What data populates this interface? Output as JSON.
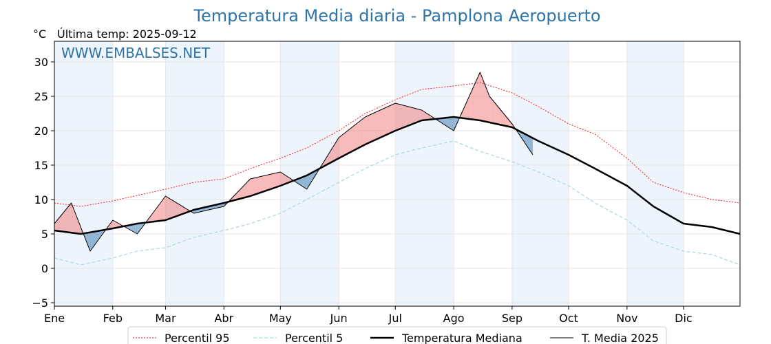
{
  "chart_data": {
    "type": "line",
    "title": "Temperatura Media diaria - Pamplona Aeropuerto",
    "unit_label": "°C",
    "last_temp_label": "Última temp: 2025-09-12",
    "watermark": "WWW.EMBALSES.NET",
    "ylim": [
      -5.5,
      33
    ],
    "yticks": [
      -5,
      0,
      5,
      10,
      15,
      20,
      25,
      30
    ],
    "months": [
      "Ene",
      "Feb",
      "Mar",
      "Abr",
      "May",
      "Jun",
      "Jul",
      "Ago",
      "Sep",
      "Oct",
      "Nov",
      "Dic"
    ],
    "month_start_days": [
      1,
      32,
      60,
      91,
      121,
      152,
      182,
      213,
      244,
      274,
      305,
      335
    ],
    "x_max_day": 365,
    "grid": true,
    "legend_position": "bottom",
    "colors": {
      "p95": "#ff0000",
      "p5": "#add8e6",
      "median": "#000000",
      "current": "#000000",
      "above_fill": "#f08080",
      "below_fill": "#4682b4",
      "month_shade": "#eef4fb"
    },
    "series": [
      {
        "name": "Percentil 95",
        "x": [
          1,
          15,
          32,
          45,
          60,
          75,
          91,
          105,
          121,
          135,
          152,
          166,
          182,
          196,
          213,
          227,
          244,
          258,
          274,
          288,
          305,
          319,
          335,
          350,
          365
        ],
        "values": [
          9.5,
          9.0,
          9.8,
          10.6,
          11.5,
          12.5,
          13.0,
          14.5,
          16.0,
          17.5,
          20.0,
          22.5,
          24.5,
          26.0,
          26.5,
          27.0,
          25.5,
          23.5,
          21.0,
          19.5,
          16.0,
          12.5,
          11.0,
          10.0,
          9.5
        ]
      },
      {
        "name": "Percentil 5",
        "x": [
          1,
          15,
          32,
          45,
          60,
          75,
          91,
          105,
          121,
          135,
          152,
          166,
          182,
          196,
          213,
          227,
          244,
          258,
          274,
          288,
          305,
          319,
          335,
          350,
          365
        ],
        "values": [
          1.5,
          0.5,
          1.5,
          2.5,
          3.0,
          4.5,
          5.5,
          6.5,
          8.0,
          10.0,
          12.5,
          14.5,
          16.5,
          17.5,
          18.5,
          17.0,
          15.5,
          14.0,
          12.0,
          9.5,
          7.0,
          4.0,
          2.5,
          2.0,
          0.5
        ]
      },
      {
        "name": "Temperatura Mediana",
        "x": [
          1,
          15,
          32,
          45,
          60,
          75,
          91,
          105,
          121,
          135,
          152,
          166,
          182,
          196,
          213,
          227,
          244,
          258,
          274,
          288,
          305,
          319,
          335,
          350,
          365
        ],
        "values": [
          5.5,
          5.0,
          5.8,
          6.5,
          7.0,
          8.5,
          9.5,
          10.5,
          12.0,
          13.5,
          16.0,
          18.0,
          20.0,
          21.5,
          22.0,
          21.5,
          20.5,
          18.5,
          16.5,
          14.5,
          12.0,
          9.0,
          6.5,
          6.0,
          5.0
        ]
      },
      {
        "name": "T. Media 2025",
        "x": [
          1,
          10,
          20,
          32,
          45,
          60,
          75,
          91,
          105,
          121,
          135,
          152,
          166,
          182,
          196,
          213,
          227,
          232,
          244,
          255
        ],
        "values": [
          6.5,
          9.5,
          2.5,
          7.0,
          5.0,
          10.5,
          8.0,
          9.0,
          13.0,
          14.0,
          11.5,
          19.0,
          22.0,
          24.0,
          23.0,
          20.0,
          28.5,
          25.0,
          21.0,
          16.5
        ]
      }
    ]
  }
}
